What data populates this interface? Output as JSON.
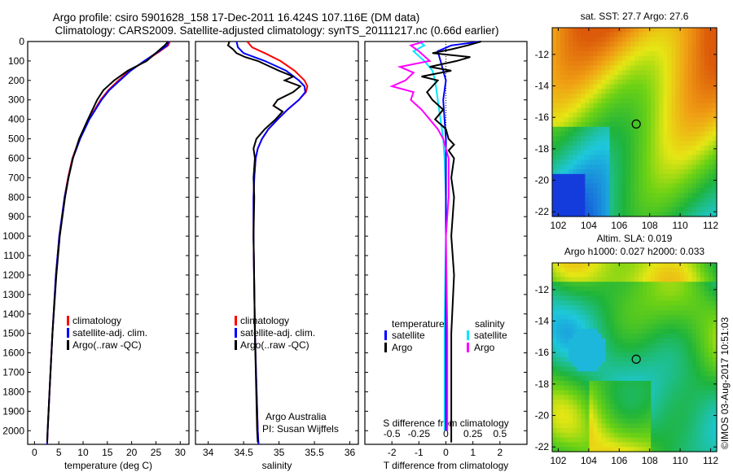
{
  "header": {
    "title_line1": "Argo profile: csiro 5901628_158 17-Dec-2011 16.424S 107.116E (DM data)",
    "title_line2": "Climatology: CARS2009. Satellite-adjusted climatology: synTS_20111217.nc (0.66d earlier)"
  },
  "credits": {
    "group": "Argo Australia",
    "pi": "PI: Susan Wijffels",
    "stamp": "©IMOS 03-Aug-2017 10:51:03"
  },
  "colors": {
    "climatology": "#ff0000",
    "satellite": "#0000ff",
    "argo": "#000000",
    "sal_satellite": "#00e8ff",
    "sal_argo": "#ff00ff"
  },
  "chart_data": [
    {
      "type": "line",
      "id": "temperature",
      "xlabel": "temperature (deg C)",
      "ylabel": "",
      "xlim": [
        -1.4,
        31.8
      ],
      "ylim": [
        0,
        2070
      ],
      "xticks": [
        0,
        5,
        10,
        15,
        20,
        25,
        30
      ],
      "yticks": [
        0,
        100,
        200,
        300,
        400,
        500,
        600,
        700,
        800,
        900,
        1000,
        1100,
        1200,
        1300,
        1400,
        1500,
        1600,
        1700,
        1800,
        1900,
        2000
      ],
      "legend": [
        "climatology",
        "satellite-adj. clim.",
        "Argo(..raw -QC)"
      ],
      "series": [
        {
          "name": "climatology",
          "color": "#ff0000",
          "depth": [
            0,
            20,
            50,
            100,
            150,
            200,
            250,
            300,
            400,
            500,
            600,
            700,
            800,
            1000,
            1200,
            1500,
            1800,
            2000,
            2070
          ],
          "values": [
            27.9,
            27.5,
            25.8,
            22.8,
            19.6,
            17.3,
            15.2,
            13.6,
            11.2,
            9.3,
            7.8,
            6.9,
            6.2,
            5.1,
            4.4,
            3.7,
            3.1,
            2.7,
            2.6
          ]
        },
        {
          "name": "satellite-adj. clim.",
          "color": "#0000ff",
          "depth": [
            0,
            20,
            50,
            100,
            150,
            200,
            250,
            300,
            400,
            500,
            600,
            700,
            800,
            1000,
            1200,
            1500,
            1800,
            2000,
            2070
          ],
          "values": [
            27.6,
            27.3,
            25.6,
            22.6,
            19.8,
            17.6,
            15.4,
            13.8,
            11.3,
            9.4,
            7.9,
            7.0,
            6.2,
            5.1,
            4.4,
            3.7,
            3.1,
            2.7,
            2.6
          ]
        },
        {
          "name": "Argo(..raw -QC)",
          "color": "#000000",
          "depth": [
            0,
            20,
            50,
            100,
            150,
            200,
            250,
            300,
            400,
            500,
            600,
            700,
            800,
            1000,
            1200,
            1500,
            1800,
            2000,
            2060
          ],
          "values": [
            27.5,
            26.8,
            25.4,
            23.1,
            19.2,
            16.4,
            14.2,
            12.9,
            11.0,
            9.2,
            7.9,
            7.0,
            6.3,
            5.2,
            4.5,
            3.7,
            3.1,
            2.7,
            2.6
          ]
        }
      ]
    },
    {
      "type": "line",
      "id": "salinity",
      "xlabel": "salinity",
      "xlim": [
        33.82,
        36.12
      ],
      "ylim": [
        0,
        2070
      ],
      "xticks": [
        34,
        34.5,
        35,
        35.5,
        36
      ],
      "legend": [
        "climatology",
        "satellite-adj. clim.",
        "Argo(..raw -QC)"
      ],
      "series": [
        {
          "name": "climatology",
          "color": "#ff0000",
          "depth": [
            0,
            30,
            60,
            100,
            150,
            200,
            230,
            260,
            300,
            350,
            400,
            450,
            500,
            550,
            600,
            700,
            800,
            1000,
            1500,
            2000,
            2070
          ],
          "values": [
            34.55,
            34.62,
            34.8,
            35.02,
            35.22,
            35.36,
            35.4,
            35.38,
            35.28,
            35.12,
            34.98,
            34.85,
            34.76,
            34.7,
            34.67,
            34.65,
            34.64,
            34.64,
            34.66,
            34.7,
            34.71
          ]
        },
        {
          "name": "satellite-adj. clim.",
          "color": "#0000ff",
          "depth": [
            0,
            30,
            60,
            100,
            150,
            200,
            230,
            260,
            300,
            350,
            400,
            450,
            500,
            550,
            600,
            700,
            800,
            1000,
            1500,
            2000,
            2070
          ],
          "values": [
            34.4,
            34.42,
            34.5,
            34.8,
            35.1,
            35.28,
            35.36,
            35.37,
            35.28,
            35.12,
            34.98,
            34.85,
            34.76,
            34.7,
            34.67,
            34.65,
            34.64,
            34.64,
            34.66,
            34.7,
            34.71
          ]
        },
        {
          "name": "Argo(..raw -QC)",
          "color": "#000000",
          "depth": [
            0,
            20,
            40,
            60,
            80,
            100,
            150,
            180,
            200,
            230,
            260,
            300,
            330,
            360,
            400,
            450,
            500,
            550,
            600,
            700,
            800,
            1000,
            1500,
            2000,
            2060
          ],
          "values": [
            34.3,
            34.28,
            34.35,
            34.4,
            34.52,
            34.7,
            35.0,
            35.2,
            35.08,
            35.3,
            35.2,
            34.98,
            34.92,
            35.05,
            34.95,
            34.8,
            34.68,
            34.64,
            34.66,
            34.64,
            34.65,
            34.64,
            34.66,
            34.69,
            34.7
          ]
        }
      ]
    },
    {
      "type": "line",
      "id": "difference",
      "xlabel": "T difference from climatology",
      "x2label": "S difference from climatology",
      "xlim": [
        -3,
        3
      ],
      "ylim": [
        0,
        2070
      ],
      "xticks": [
        -2,
        -1,
        0,
        1,
        2
      ],
      "x2ticks": [
        -0.5,
        -0.25,
        0,
        0.25,
        0.5
      ],
      "x2ticklabels": [
        "-0.5",
        "-0.25",
        "0",
        "0.25",
        "0.5"
      ],
      "legend_headers": [
        "temperature",
        "salinity"
      ],
      "legend": [
        "satellite",
        "Argo",
        "satellite",
        "Argo"
      ],
      "series": [
        {
          "name": "T satellite",
          "color": "#0000ff",
          "depth": [
            0,
            20,
            50,
            100,
            150,
            200,
            300,
            400,
            500,
            600,
            800,
            1000,
            1500,
            2000
          ],
          "values": [
            1.3,
            0.2,
            -0.3,
            -0.2,
            -0.1,
            0.0,
            -0.1,
            -0.05,
            0.0,
            0.0,
            0.0,
            0.0,
            0.0,
            0.0
          ]
        },
        {
          "name": "T Argo",
          "color": "#000000",
          "depth": [
            0,
            20,
            40,
            60,
            80,
            100,
            130,
            150,
            180,
            200,
            230,
            260,
            300,
            350,
            400,
            450,
            500,
            530,
            560,
            600,
            700,
            800,
            1000,
            1200,
            1500,
            1800,
            2000,
            2060
          ],
          "values": [
            1.3,
            0.8,
            0.2,
            -0.5,
            0.9,
            0.4,
            -0.6,
            0.2,
            -0.9,
            -0.3,
            -0.5,
            -0.7,
            -0.5,
            -0.1,
            -0.4,
            0.0,
            0.1,
            0.3,
            0.1,
            0.3,
            0.2,
            0.3,
            0.2,
            0.3,
            0.2,
            0.2,
            0.2,
            0.2
          ]
        },
        {
          "name": "S satellite",
          "color": "#00e8ff",
          "depth": [
            0,
            20,
            50,
            100,
            150,
            200,
            300,
            400,
            500,
            600,
            800,
            1000,
            1500,
            2000
          ],
          "values": [
            -1.0,
            -0.8,
            -1.2,
            -0.8,
            -0.5,
            -0.4,
            -0.3,
            -0.2,
            -0.1,
            -0.05,
            0.0,
            0.0,
            -0.05,
            -0.05
          ]
        },
        {
          "name": "S Argo",
          "color": "#ff00ff",
          "depth": [
            0,
            20,
            50,
            100,
            130,
            160,
            200,
            230,
            260,
            300,
            350,
            400,
            450,
            500,
            600,
            800,
            1000,
            1500,
            2000
          ],
          "values": [
            -0.8,
            -1.3,
            -1.0,
            -0.6,
            -1.7,
            -1.2,
            -1.5,
            -2.0,
            -1.2,
            -1.3,
            -0.9,
            -0.6,
            -0.3,
            -0.1,
            0.1,
            0.1,
            0.0,
            0.05,
            0.05
          ]
        }
      ]
    },
    {
      "type": "heatmap",
      "id": "sst_map",
      "title": "sat. SST: 27.7 Argo: 27.6",
      "xlim": [
        101.6,
        112.4
      ],
      "ylim": [
        -22.3,
        -10.3
      ],
      "xticks": [
        102,
        104,
        106,
        108,
        110,
        112
      ],
      "yticks": [
        -12,
        -14,
        -16,
        -18,
        -20,
        -22
      ],
      "profile_location": [
        107.116,
        -16.424
      ]
    },
    {
      "type": "heatmap",
      "id": "sla_map",
      "title": "Altim. SLA: 0.019",
      "subtitle": "Argo h1000: 0.027 h2000: 0.033",
      "xlim": [
        101.6,
        112.4
      ],
      "ylim": [
        -22.3,
        -10.3
      ],
      "xticks": [
        102,
        104,
        106,
        108,
        110,
        112
      ],
      "yticks": [
        -12,
        -14,
        -16,
        -18,
        -20,
        -22
      ],
      "profile_location": [
        107.116,
        -16.424
      ]
    }
  ]
}
